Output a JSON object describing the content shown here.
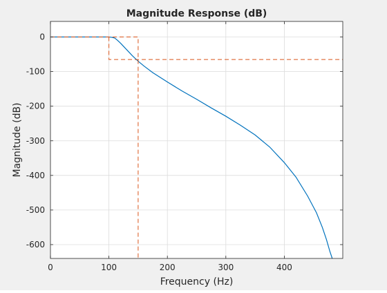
{
  "chart_data": {
    "type": "line",
    "title": "Magnitude Response (dB)",
    "xlabel": "Frequency (Hz)",
    "ylabel": "Magnitude (dB)",
    "xlim": [
      0,
      500
    ],
    "ylim": [
      -640,
      45
    ],
    "xticks": [
      0,
      100,
      200,
      300,
      400
    ],
    "yticks": [
      0,
      -100,
      -200,
      -300,
      -400,
      -500,
      -600
    ],
    "grid": true,
    "colors": {
      "response": "#0072bd",
      "mask": "#d95319",
      "grid": "#dcdcdc",
      "axes": "#262626",
      "plot_background": "#ffffff",
      "figure_background": "#f0f0f0"
    },
    "series": [
      {
        "role": "response",
        "style": "solid",
        "x": [
          0,
          20,
          40,
          60,
          80,
          100,
          105,
          110,
          115,
          120,
          130,
          140,
          150,
          160,
          175,
          200,
          225,
          250,
          275,
          300,
          325,
          350,
          375,
          400,
          420,
          440,
          455,
          465,
          472,
          478,
          482
        ],
        "y": [
          0,
          0,
          0,
          0,
          0,
          0,
          -1,
          -3,
          -10,
          -18,
          -36,
          -54,
          -70,
          -84,
          -103,
          -130,
          -156,
          -180,
          -205,
          -229,
          -255,
          -283,
          -318,
          -363,
          -405,
          -460,
          -508,
          -550,
          -585,
          -620,
          -640
        ]
      },
      {
        "role": "mask-passband",
        "style": "dashed",
        "x": [
          0,
          150,
          150
        ],
        "y": [
          0,
          0,
          -640
        ]
      },
      {
        "role": "mask-stopband",
        "style": "dashed",
        "x": [
          100,
          100,
          500
        ],
        "y": [
          0,
          -65,
          -65
        ]
      }
    ]
  }
}
